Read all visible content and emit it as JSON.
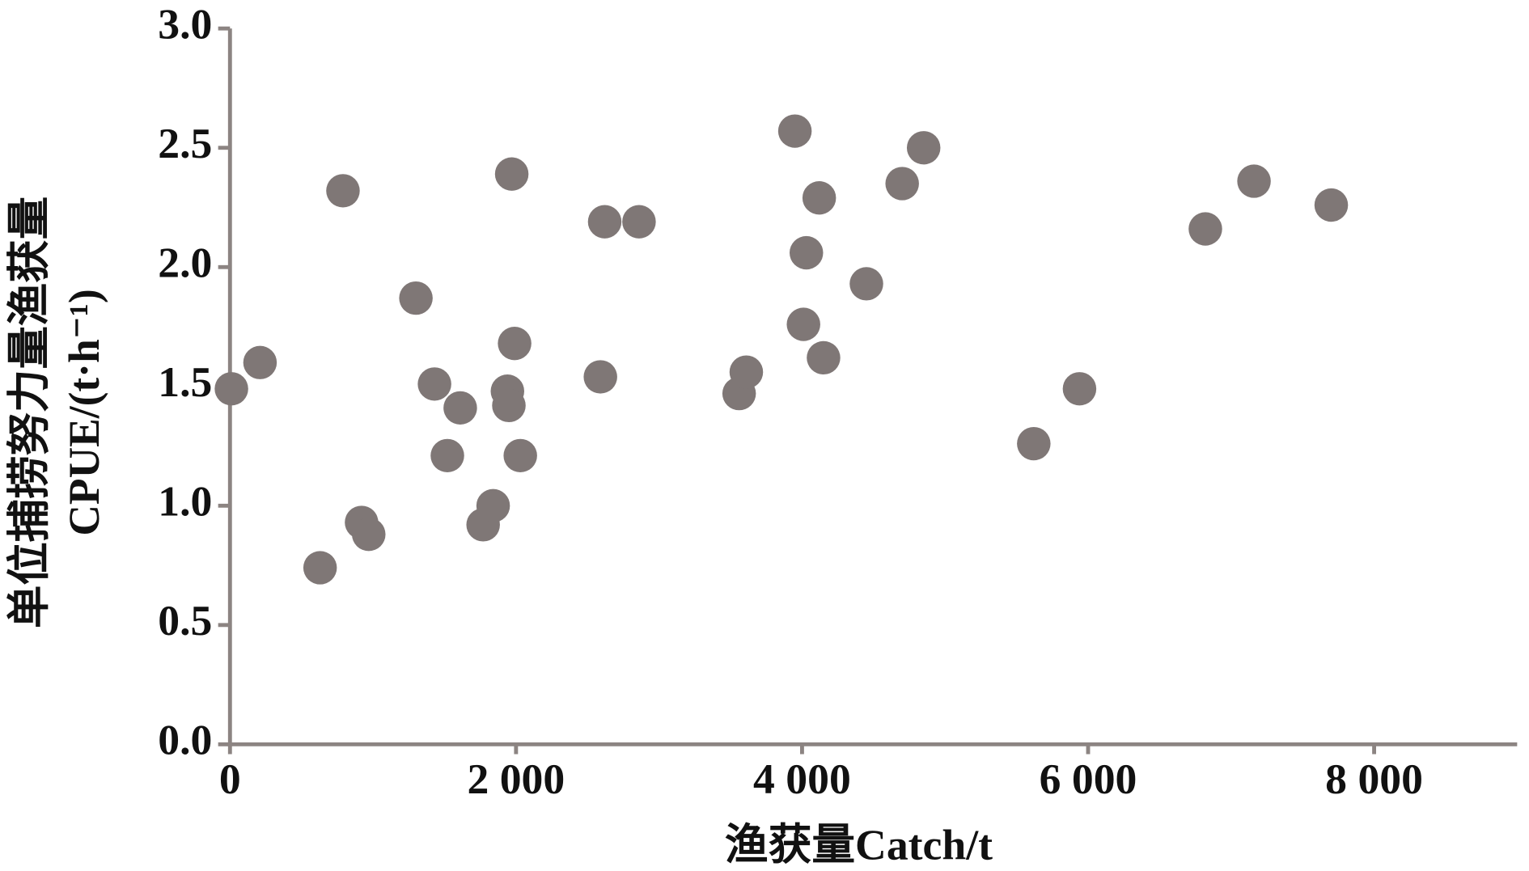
{
  "chart_data": {
    "type": "scatter",
    "x_label": "渔获量Catch/t",
    "y_label": [
      "单位捕捞努力量渔获量",
      "CPUE/(t·h⁻¹)"
    ],
    "color": "#7f7776",
    "x": [
      10,
      210,
      630,
      790,
      920,
      970,
      1300,
      1430,
      1520,
      1610,
      1770,
      1840,
      1940,
      1950,
      1970,
      1990,
      2030,
      2590,
      2620,
      2860,
      3560,
      3610,
      3950,
      4010,
      4030,
      4120,
      4150,
      4450,
      4700,
      4850,
      5620,
      5940,
      6820,
      7160,
      7700
    ],
    "values": [
      1.49,
      1.6,
      0.74,
      2.32,
      0.93,
      0.88,
      1.87,
      1.51,
      1.21,
      1.41,
      0.92,
      1.0,
      1.48,
      1.42,
      2.39,
      1.68,
      1.21,
      1.54,
      2.19,
      2.19,
      1.47,
      1.56,
      2.57,
      1.76,
      2.06,
      2.29,
      1.62,
      1.93,
      2.35,
      2.5,
      1.26,
      1.49,
      2.16,
      2.36,
      2.26
    ],
    "xlim": [
      0,
      9000
    ],
    "xticks": [
      0,
      {
        "value": 2000,
        "label": "2 000"
      },
      {
        "value": 4000,
        "label": "4 000"
      },
      {
        "value": 6000,
        "label": "6 000"
      },
      {
        "value": 8000,
        "label": "8 000"
      }
    ],
    "ylim": [
      0,
      3
    ],
    "yticks": [
      {
        "value": 0,
        "label": "0.0"
      },
      0.5,
      {
        "value": 1,
        "label": "1.0"
      },
      1.5,
      {
        "value": 2,
        "label": "2.0"
      },
      2.5,
      {
        "value": 3,
        "label": "3.0"
      }
    ]
  }
}
